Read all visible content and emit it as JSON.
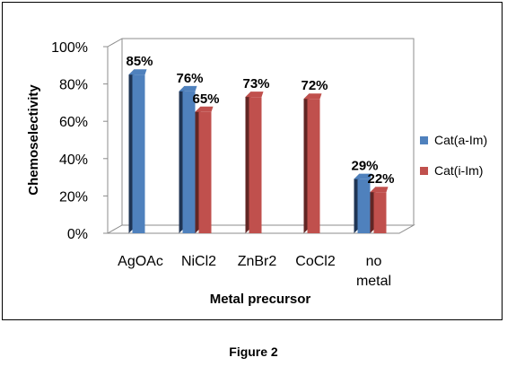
{
  "caption": "Figure 2",
  "chart_data": {
    "type": "bar",
    "title": "",
    "xlabel": "Metal precursor",
    "ylabel": "Chemoselectivity",
    "categories": [
      "AgOAc",
      "NiCl2",
      "ZnBr2",
      "CoCl2",
      "no metal"
    ],
    "series": [
      {
        "name": "Cat(a-Im)",
        "values": [
          85,
          76,
          null,
          null,
          29
        ],
        "labels": [
          "85%",
          "76%",
          "",
          "",
          "29%"
        ],
        "color": "#4f81bd",
        "dark": "#1f3555"
      },
      {
        "name": "Cat(i-Im)",
        "values": [
          null,
          65,
          73,
          72,
          22
        ],
        "labels": [
          "",
          "65%",
          "73%",
          "72%",
          "22%"
        ],
        "color": "#c0504d",
        "dark": "#622624"
      }
    ],
    "ylim": [
      0,
      100
    ],
    "yticks": [
      "0%",
      "20%",
      "40%",
      "60%",
      "80%",
      "100%"
    ],
    "grid": false,
    "legend": "right",
    "style": "3d-column"
  }
}
